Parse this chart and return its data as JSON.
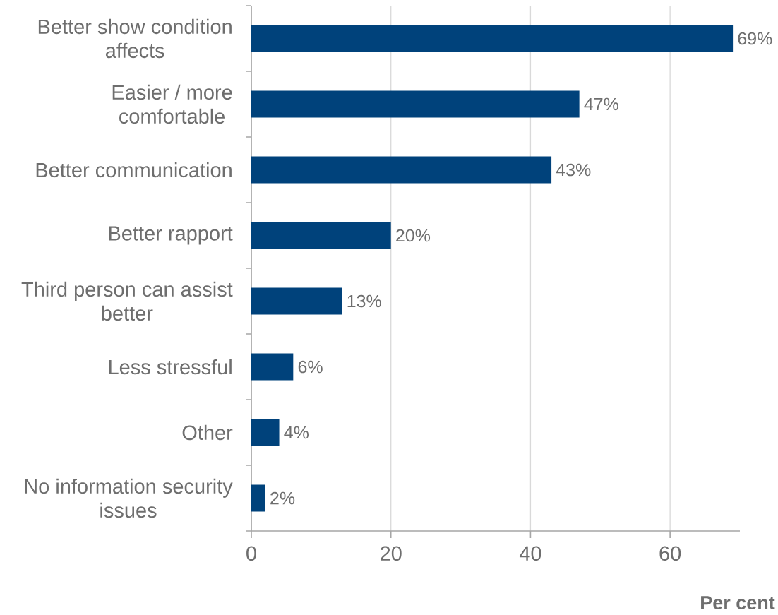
{
  "chart_data": {
    "type": "bar",
    "orientation": "horizontal",
    "categories": [
      "Better show condition affects",
      "Easier / more comfortable",
      "Better communication",
      "Better rapport",
      "Third person can assist better",
      "Less stressful",
      "Other",
      "No information security issues"
    ],
    "values": [
      69,
      47,
      43,
      20,
      13,
      6,
      4,
      2
    ],
    "value_labels": [
      "69%",
      "47%",
      "43%",
      "20%",
      "13%",
      "6%",
      "4%",
      "2%"
    ],
    "color": "#00427b",
    "xlim": [
      0,
      70
    ],
    "xticks": [
      0,
      20,
      40,
      60
    ],
    "xlabel": "Per cent",
    "grid": "x"
  }
}
